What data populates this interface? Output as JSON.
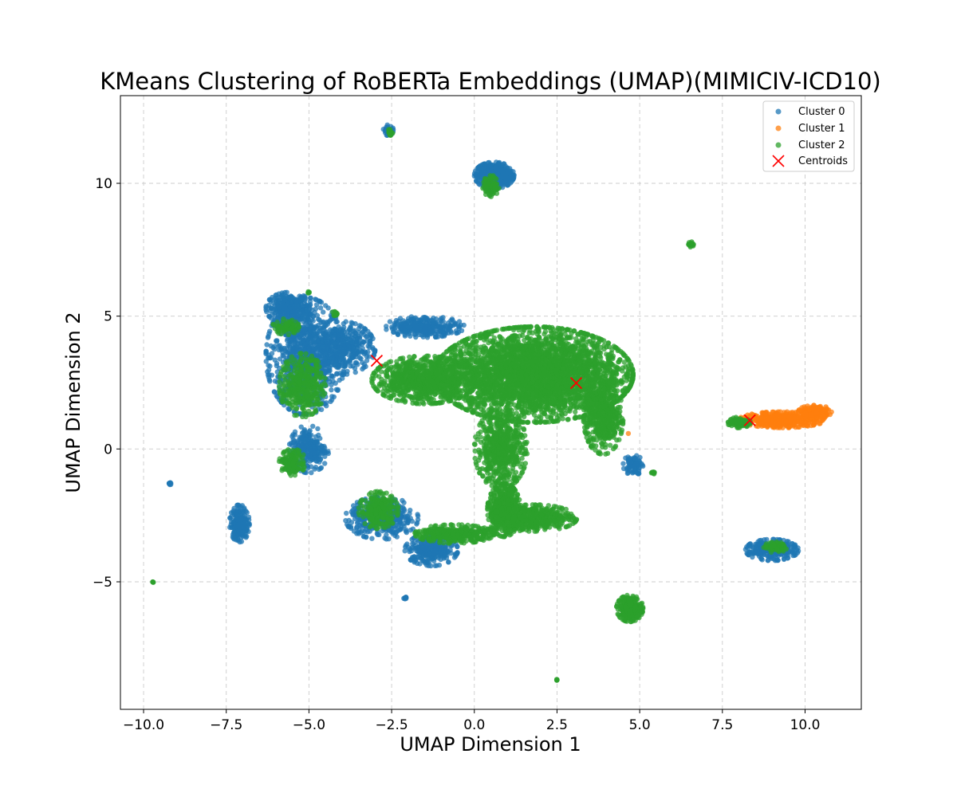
{
  "chart_data": {
    "type": "scatter",
    "title": "KMeans Clustering of RoBERTa Embeddings (UMAP)(MIMICIV-ICD10)",
    "xlabel": "UMAP Dimension 1",
    "ylabel": "UMAP Dimension 2",
    "xlim": [
      -10.7,
      11.7
    ],
    "ylim": [
      -9.8,
      13.3
    ],
    "xticks": [
      -10.0,
      -7.5,
      -5.0,
      -2.5,
      0.0,
      2.5,
      5.0,
      7.5,
      10.0
    ],
    "xtick_labels": [
      "−10.0",
      "−7.5",
      "−5.0",
      "−2.5",
      "0.0",
      "2.5",
      "5.0",
      "7.5",
      "10.0"
    ],
    "yticks": [
      -5,
      0,
      5,
      10
    ],
    "ytick_labels": [
      "−5",
      "0",
      "5",
      "10"
    ],
    "grid": true,
    "grid_style": "dashed",
    "legend_position": "top-right",
    "colors": {
      "cluster0": "#1f77b4",
      "cluster1": "#ff7f0e",
      "cluster2": "#2ca02c",
      "centroid": "#ff0000"
    },
    "series": [
      {
        "name": "Cluster 0",
        "color": "#1f77b4",
        "regions": [
          {
            "cx": -5.1,
            "cy": 3.5,
            "rx": 1.2,
            "ry": 2.2,
            "n": 900
          },
          {
            "cx": -5.6,
            "cy": 5.3,
            "rx": 0.7,
            "ry": 0.6,
            "n": 300
          },
          {
            "cx": -4.0,
            "cy": 3.8,
            "rx": 1.0,
            "ry": 1.0,
            "n": 400
          },
          {
            "cx": -5.0,
            "cy": 0.0,
            "rx": 0.6,
            "ry": 0.9,
            "n": 250
          },
          {
            "cx": -2.6,
            "cy": 12.0,
            "rx": 0.15,
            "ry": 0.2,
            "n": 40
          },
          {
            "cx": 0.6,
            "cy": 10.3,
            "rx": 0.6,
            "ry": 0.5,
            "n": 500
          },
          {
            "cx": -7.1,
            "cy": -2.8,
            "rx": 0.3,
            "ry": 0.7,
            "n": 200
          },
          {
            "cx": -9.2,
            "cy": -1.3,
            "rx": 0.05,
            "ry": 0.05,
            "n": 10
          },
          {
            "cx": -2.1,
            "cy": -5.6,
            "rx": 0.05,
            "ry": 0.05,
            "n": 10
          },
          {
            "cx": -2.8,
            "cy": -2.6,
            "rx": 1.1,
            "ry": 0.8,
            "n": 400
          },
          {
            "cx": -1.3,
            "cy": -3.8,
            "rx": 0.8,
            "ry": 0.6,
            "n": 300
          },
          {
            "cx": 9.0,
            "cy": -3.8,
            "rx": 0.8,
            "ry": 0.4,
            "n": 300
          },
          {
            "cx": -1.5,
            "cy": 4.6,
            "rx": 1.2,
            "ry": 0.4,
            "n": 300
          },
          {
            "cx": 4.8,
            "cy": -0.6,
            "rx": 0.3,
            "ry": 0.4,
            "n": 80
          }
        ]
      },
      {
        "name": "Cluster 1",
        "color": "#ff7f0e",
        "regions": [
          {
            "cx": 9.3,
            "cy": 1.1,
            "rx": 1.3,
            "ry": 0.3,
            "n": 500
          },
          {
            "cx": 10.3,
            "cy": 1.4,
            "rx": 0.5,
            "ry": 0.25,
            "n": 150
          },
          {
            "cx": 4.65,
            "cy": 0.6,
            "rx": 0.02,
            "ry": 0.02,
            "n": 1
          }
        ]
      },
      {
        "name": "Cluster 2",
        "color": "#2ca02c",
        "regions": [
          {
            "cx": 1.8,
            "cy": 2.8,
            "rx": 3.0,
            "ry": 1.8,
            "n": 3500
          },
          {
            "cx": -1.5,
            "cy": 2.6,
            "rx": 1.6,
            "ry": 0.9,
            "n": 900
          },
          {
            "cx": 0.8,
            "cy": 0.0,
            "rx": 0.8,
            "ry": 1.5,
            "n": 600
          },
          {
            "cx": 0.9,
            "cy": -2.3,
            "rx": 0.5,
            "ry": 1.0,
            "n": 500
          },
          {
            "cx": 1.8,
            "cy": -2.6,
            "rx": 1.3,
            "ry": 0.5,
            "n": 500
          },
          {
            "cx": -0.6,
            "cy": -3.2,
            "rx": 1.2,
            "ry": 0.35,
            "n": 400
          },
          {
            "cx": -2.9,
            "cy": -2.3,
            "rx": 0.6,
            "ry": 0.7,
            "n": 250
          },
          {
            "cx": -5.2,
            "cy": 2.4,
            "rx": 0.7,
            "ry": 1.2,
            "n": 350
          },
          {
            "cx": -5.5,
            "cy": -0.5,
            "rx": 0.4,
            "ry": 0.5,
            "n": 150
          },
          {
            "cx": 3.9,
            "cy": 1.2,
            "rx": 0.6,
            "ry": 1.4,
            "n": 500
          },
          {
            "cx": 4.7,
            "cy": -6.0,
            "rx": 0.4,
            "ry": 0.5,
            "n": 300
          },
          {
            "cx": 8.0,
            "cy": 1.0,
            "rx": 0.35,
            "ry": 0.2,
            "n": 120
          },
          {
            "cx": 9.1,
            "cy": -3.7,
            "rx": 0.35,
            "ry": 0.2,
            "n": 80
          },
          {
            "cx": 6.55,
            "cy": 7.7,
            "rx": 0.08,
            "ry": 0.1,
            "n": 30
          },
          {
            "cx": 0.5,
            "cy": 9.9,
            "rx": 0.25,
            "ry": 0.4,
            "n": 100
          },
          {
            "cx": -2.55,
            "cy": 11.9,
            "rx": 0.08,
            "ry": 0.15,
            "n": 20
          },
          {
            "cx": -9.7,
            "cy": -5.0,
            "rx": 0.03,
            "ry": 0.03,
            "n": 5
          },
          {
            "cx": 2.5,
            "cy": -8.7,
            "rx": 0.03,
            "ry": 0.03,
            "n": 5
          },
          {
            "cx": -5.0,
            "cy": 5.9,
            "rx": 0.04,
            "ry": 0.04,
            "n": 5
          },
          {
            "cx": -4.2,
            "cy": 5.1,
            "rx": 0.1,
            "ry": 0.1,
            "n": 15
          },
          {
            "cx": -5.7,
            "cy": 4.6,
            "rx": 0.4,
            "ry": 0.3,
            "n": 80
          },
          {
            "cx": 5.4,
            "cy": -0.9,
            "rx": 0.08,
            "ry": 0.05,
            "n": 10
          }
        ]
      }
    ],
    "centroids": {
      "name": "Centroids",
      "color": "#ff0000",
      "points": [
        {
          "x": -2.95,
          "y": 3.32
        },
        {
          "x": 3.08,
          "y": 2.48
        },
        {
          "x": 8.33,
          "y": 1.08
        }
      ]
    },
    "legend": [
      "Cluster 0",
      "Cluster 1",
      "Cluster 2",
      "Centroids"
    ]
  }
}
